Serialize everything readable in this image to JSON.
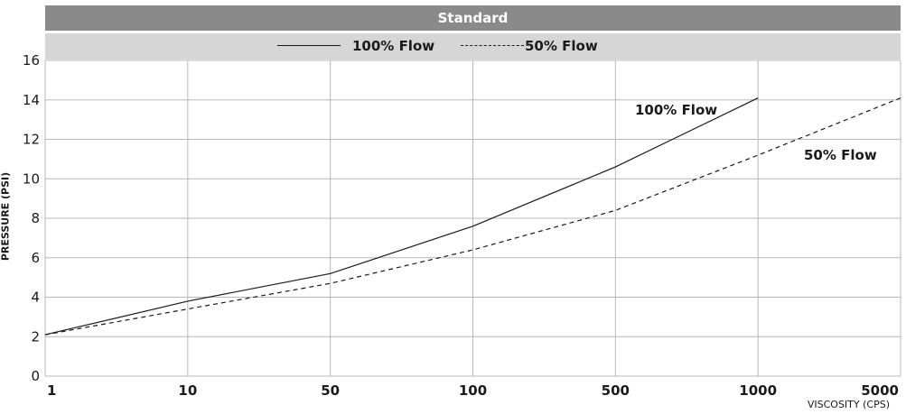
{
  "colors": {
    "title_bg": "#8a8a8a",
    "legend_bg": "#d6d6d6",
    "grid": "#b8b8b8",
    "line": "#1a1a1a"
  },
  "header": {
    "title": "Standard"
  },
  "legend": {
    "solid_label": "100% Flow",
    "dashed_label": "50% Flow"
  },
  "chart_data": {
    "type": "line",
    "title": "Standard",
    "xlabel": "VISCOSITY (CPS)",
    "ylabel": "PRESSURE (PSI)",
    "x_scale": "log",
    "x_ticks": [
      1,
      10,
      50,
      100,
      500,
      1000,
      5000
    ],
    "x_tick_labels": [
      "1",
      "10",
      "50",
      "100",
      "500",
      "1000",
      "5000"
    ],
    "ylim": [
      0,
      16
    ],
    "y_ticks": [
      0,
      2,
      4,
      6,
      8,
      10,
      12,
      14,
      16
    ],
    "grid": true,
    "legend_position": "top",
    "series": [
      {
        "name": "100% Flow",
        "style": "solid",
        "x": [
          1,
          10,
          50,
          100,
          500,
          1000
        ],
        "y": [
          2.1,
          3.8,
          5.2,
          7.6,
          10.6,
          14.1
        ]
      },
      {
        "name": "50% Flow",
        "style": "dashed",
        "x": [
          1,
          10,
          50,
          100,
          500,
          1000,
          5000
        ],
        "y": [
          2.1,
          3.4,
          4.7,
          6.4,
          8.4,
          11.2,
          14.1
        ]
      }
    ],
    "annotations": [
      {
        "text": "100% Flow",
        "series": "100% Flow"
      },
      {
        "text": "50% Flow",
        "series": "50% Flow"
      }
    ]
  }
}
